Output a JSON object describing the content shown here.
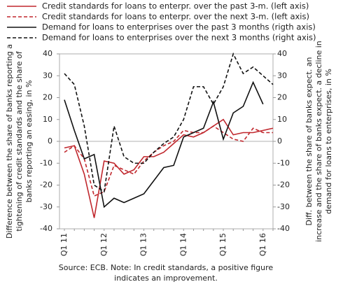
{
  "chart_data": {
    "type": "line",
    "categories": [
      "Q1 11",
      null,
      null,
      null,
      "Q1 12",
      null,
      null,
      null,
      "Q1 13",
      null,
      null,
      null,
      "Q1 14",
      null,
      null,
      null,
      "Q1 15",
      null,
      null,
      null,
      "Q1 16",
      null
    ],
    "series": [
      {
        "name": "Credit standards for loans to enterpr. over the past 3-m. (left axis)",
        "color": "#c0272d",
        "dash": false,
        "axis": "y",
        "values": [
          -3,
          -2,
          -15,
          -35,
          -9,
          -10,
          -15,
          -13,
          -7,
          -7,
          -5,
          -1,
          3,
          2,
          4,
          7,
          10,
          3,
          4,
          4,
          5,
          6
        ]
      },
      {
        "name": "Credit standards for loans to enterpr. over the next 3-m. (left axis)",
        "color": "#c0272d",
        "dash": true,
        "axis": "y",
        "values": [
          -5,
          -2,
          -8,
          -25,
          -23,
          -11,
          -13,
          -15,
          -9,
          -5,
          -2,
          0,
          5,
          4,
          4,
          7,
          4,
          1,
          0,
          6,
          4,
          4
        ]
      },
      {
        "name": "Demand for loans to enterprises over the past 3 months (rigth axis)",
        "color": "#111111",
        "dash": false,
        "axis": "y2",
        "values": [
          19,
          5,
          -8,
          -6,
          -30,
          -26,
          -28,
          -26,
          -24,
          -18,
          -12,
          -11,
          2,
          4,
          6,
          18,
          1,
          13,
          16,
          27,
          17,
          null
        ]
      },
      {
        "name": "Demand for loans to enterprises over the next 3 months (right axis)",
        "color": "#111111",
        "dash": true,
        "axis": "y2",
        "values": [
          31,
          26,
          7,
          -20,
          -23,
          7,
          -7,
          -10,
          -10,
          -5,
          -1,
          2,
          10,
          25,
          25,
          17,
          25,
          40,
          31,
          34,
          30,
          26
        ]
      }
    ],
    "ylabel": [
      "Difference between the share of banks reporting a",
      "tightening of credit standards and the share of",
      "banks reporting an easing, in %"
    ],
    "y2label": [
      "Diff. between the share of banks expect. an",
      "increase and the share of banks expect. a decline in",
      "demand for loans to enterprises, in %"
    ],
    "note": [
      "Source: ECB. Note: In credit standards, a positive figure",
      "indicates an improvement."
    ],
    "ylim": [
      -40,
      40
    ],
    "yticks": [
      -40,
      -30,
      -20,
      -10,
      0,
      10,
      20,
      30,
      40
    ],
    "y2lim": [
      -40,
      40
    ],
    "y2ticks": [
      -40,
      -30,
      -20,
      -10,
      0,
      10,
      20,
      30,
      40
    ]
  }
}
